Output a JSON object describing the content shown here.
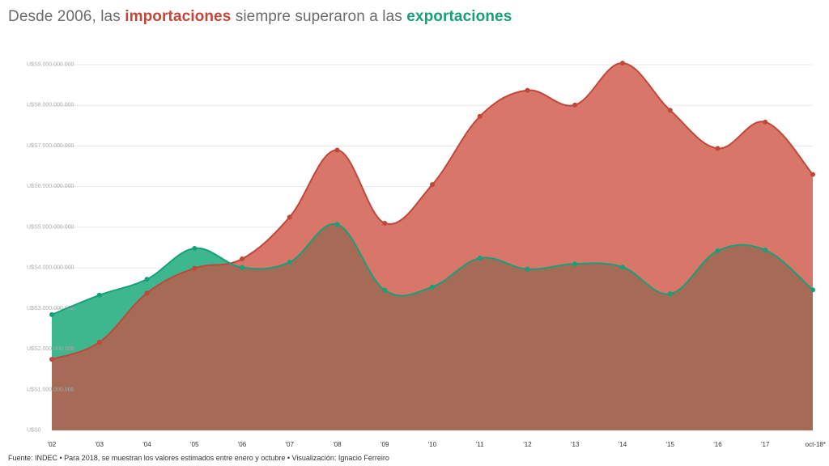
{
  "header": {
    "title_part1": "Desde 2006, las ",
    "title_imports": "importaciones",
    "title_part2": " siempre superaron a las ",
    "title_exports": "exportaciones"
  },
  "footer": {
    "source": "Fuente: INDEC • Para 2018, se muestran los valores estimados entre enero y octubre • Visualización: Ignacio Ferreiro"
  },
  "colors": {
    "imports": "#c0473a",
    "imports_fill": "#d9766a",
    "exports": "#16a07a",
    "exports_fill": "#3fb78e",
    "overlap_fill": "#a56b57",
    "grid": "#e8e8e8",
    "tick_text": "#aaaaaa",
    "axis_text": "#333333"
  },
  "chart_data": {
    "type": "area",
    "title": "Desde 2006, las importaciones siempre superaron a las exportaciones",
    "categories": [
      "'02",
      "'03",
      "'04",
      "'05",
      "'06",
      "'07",
      "'08",
      "'09",
      "'10",
      "'11",
      "'12",
      "'13",
      "'14",
      "'15",
      "'16",
      "'17",
      "oct-18*"
    ],
    "series": [
      {
        "name": "importaciones",
        "values": [
          1750000000,
          2170000000,
          3380000000,
          3990000000,
          4220000000,
          5250000000,
          6900000000,
          5100000000,
          6050000000,
          7730000000,
          8370000000,
          8010000000,
          9040000000,
          7880000000,
          6940000000,
          7590000000,
          6300000000
        ]
      },
      {
        "name": "exportaciones",
        "values": [
          2850000000,
          3330000000,
          3720000000,
          4480000000,
          4010000000,
          4140000000,
          5070000000,
          3450000000,
          3530000000,
          4240000000,
          3970000000,
          4100000000,
          4020000000,
          3360000000,
          4420000000,
          4440000000,
          3460000000
        ]
      }
    ],
    "yticks": [
      {
        "value": 0,
        "label": "U$S0"
      },
      {
        "value": 1000000000,
        "label": "U$S1.000.000.000"
      },
      {
        "value": 2000000000,
        "label": "U$S2.000.000.000"
      },
      {
        "value": 3000000000,
        "label": "U$S3.000.000.000"
      },
      {
        "value": 4000000000,
        "label": "U$S4.000.000.000"
      },
      {
        "value": 5000000000,
        "label": "U$S5.000.000.000"
      },
      {
        "value": 6000000000,
        "label": "U$S6.000.000.000"
      },
      {
        "value": 7000000000,
        "label": "U$S7.000.000.000"
      },
      {
        "value": 8000000000,
        "label": "U$S8.000.000.000"
      },
      {
        "value": 9000000000,
        "label": "U$S9.000.000.000"
      }
    ],
    "ylim": [
      0,
      9000000000
    ],
    "grid": true,
    "xlabel": "",
    "ylabel": ""
  }
}
